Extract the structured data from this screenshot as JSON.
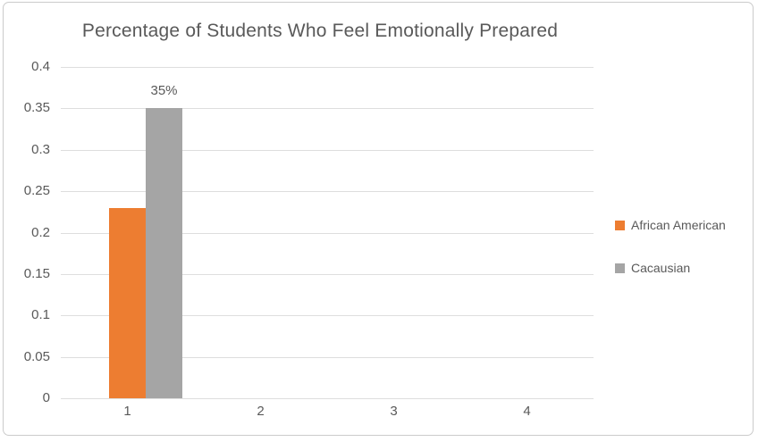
{
  "page": {
    "background": "#ffffff",
    "border_color": "#cbcbcb"
  },
  "chart_data": {
    "type": "bar",
    "title": "Percentage of Students Who Feel Emotionally Prepared",
    "categories": [
      "1",
      "2",
      "3",
      "4"
    ],
    "series": [
      {
        "name": "African American",
        "color": "#ED7D31",
        "values": [
          0.23,
          null,
          null,
          null
        ],
        "data_labels": [
          null,
          null,
          null,
          null
        ]
      },
      {
        "name": "Cacausian",
        "color": "#A5A5A5",
        "values": [
          0.35,
          null,
          null,
          null
        ],
        "data_labels": [
          "35%",
          null,
          null,
          null
        ]
      }
    ],
    "xlabel": "",
    "ylabel": "",
    "ylim": [
      0,
      0.4
    ],
    "yticks": [
      "0",
      "0.05",
      "0.1",
      "0.15",
      "0.2",
      "0.25",
      "0.3",
      "0.35",
      "0.4"
    ],
    "grid": true,
    "legend_position": "right",
    "text_color": "#595959",
    "gridline_color": "#dedede"
  }
}
